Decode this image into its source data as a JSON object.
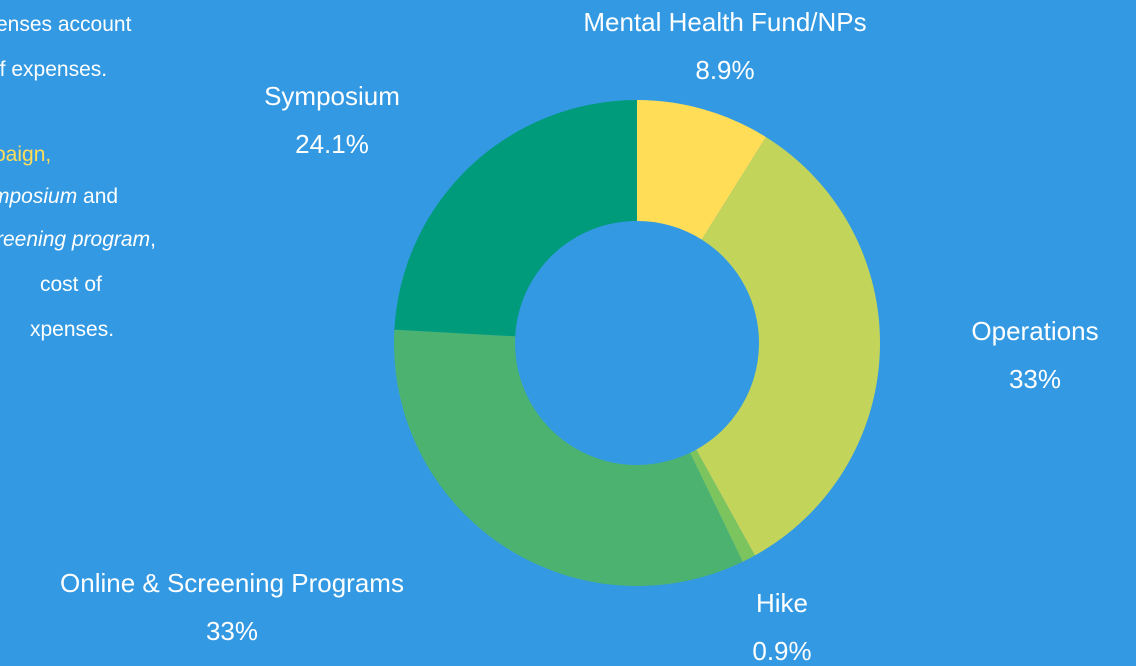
{
  "chart_data": {
    "type": "pie",
    "categories": [
      "Mental Health Fund/NPs",
      "Operations",
      "Hike",
      "Online & Screening Programs",
      "Symposium"
    ],
    "values": [
      8.9,
      33,
      0.9,
      33,
      24.1
    ],
    "value_labels": [
      "8.9%",
      "33%",
      "0.9%",
      "33%",
      "24.1%"
    ],
    "colors": [
      "#ffdd57",
      "#c2d45a",
      "#7bc45e",
      "#4cb270",
      "#009b7a"
    ],
    "donut": true
  },
  "text_lines": [
    [
      {
        "text": "enses account"
      }
    ],
    [
      {
        "text": "of expenses."
      }
    ],
    [
      {
        "text": "paign,",
        "color": "#ffdd57"
      }
    ],
    [
      {
        "text": "mposium",
        "italic": true
      },
      {
        "text": " and"
      }
    ],
    [
      {
        "text": "reening program",
        "italic": true
      },
      {
        "text": ","
      }
    ],
    [
      {
        "text": "cost of"
      }
    ],
    [
      {
        "text": "xpenses."
      }
    ]
  ]
}
